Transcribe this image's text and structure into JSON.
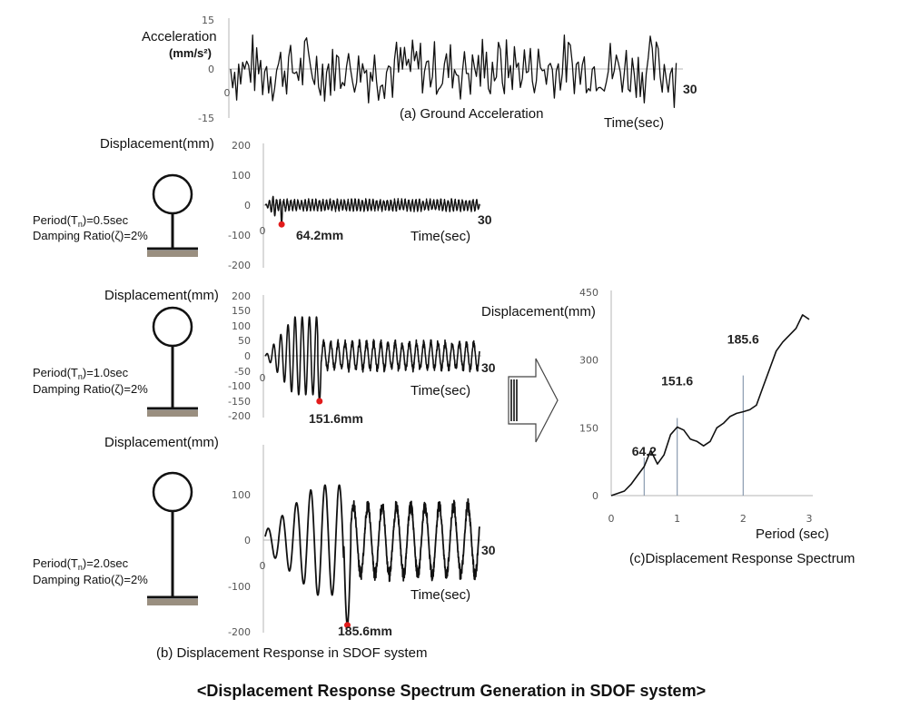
{
  "ground_accel": {
    "ylabel_line1": "Acceleration",
    "ylabel_line2": "(mm/s²)",
    "ticks": [
      "15",
      "0",
      "-15"
    ],
    "origin": "0",
    "end": "30",
    "xlabel": "Time(sec)",
    "caption": "(a) Ground Acceleration"
  },
  "sdof_panels": [
    {
      "ylabel": "Displacement(mm)",
      "period_label": "Period(T",
      "period_sub": "n",
      "period_value": ")=0.5sec",
      "damping": "Damping Ratio(ζ)=2%",
      "ticks": [
        "200",
        "100",
        "0",
        "-100",
        "-200"
      ],
      "origin": "0",
      "end": "30",
      "xlabel": "Time(sec)",
      "peak": "64.2mm",
      "peak_value": 64.2,
      "peak_time": 2.3
    },
    {
      "ylabel": "Displacement(mm)",
      "period_label": "Period(T",
      "period_sub": "n",
      "period_value": ")=1.0sec",
      "damping": "Damping Ratio(ζ)=2%",
      "ticks": [
        "200",
        "150",
        "100",
        "50",
        "0",
        "-50",
        "-100",
        "-150",
        "-200"
      ],
      "origin": "0",
      "end": "30",
      "xlabel": "Time(sec)",
      "peak": "151.6mm",
      "peak_value": 151.6,
      "peak_time": 7.6
    },
    {
      "ylabel": "Displacement(mm)",
      "period_label": "Period(T",
      "period_sub": "n",
      "period_value": ")=2.0sec",
      "damping": "Damping Ratio(ζ)=2%",
      "ticks": [
        "100",
        "0",
        "-100",
        "-200"
      ],
      "origin": "0",
      "end": "30",
      "xlabel": "Time(sec)",
      "peak": "185.6mm",
      "peak_value": 185.6,
      "peak_time": 11.5
    }
  ],
  "response_caption": "(b) Displacement Response in SDOF system",
  "chart_data": {
    "type": "line",
    "title": "(c)Displacement Response Spectrum",
    "xlabel": "Period (sec)",
    "ylabel": "Displacement(mm)",
    "xlim": [
      0,
      3
    ],
    "ylim": [
      0,
      450
    ],
    "xticks": [
      "0",
      "1",
      "2",
      "3"
    ],
    "yticks": [
      "0",
      "150",
      "300",
      "450"
    ],
    "x": [
      0,
      0.1,
      0.2,
      0.3,
      0.4,
      0.5,
      0.6,
      0.7,
      0.8,
      0.9,
      1.0,
      1.1,
      1.2,
      1.3,
      1.4,
      1.5,
      1.6,
      1.7,
      1.8,
      1.9,
      2.0,
      2.1,
      2.2,
      2.3,
      2.4,
      2.5,
      2.6,
      2.7,
      2.8,
      2.9,
      3.0
    ],
    "values": [
      0,
      5,
      10,
      25,
      45,
      64.2,
      100,
      70,
      90,
      135,
      151.6,
      145,
      125,
      120,
      110,
      120,
      150,
      160,
      175,
      182,
      185.6,
      190,
      200,
      240,
      280,
      320,
      340,
      355,
      370,
      400,
      390
    ],
    "annotations": [
      {
        "x": 0.5,
        "y": 64.2,
        "label": "64.2"
      },
      {
        "x": 1.0,
        "y": 151.6,
        "label": "151.6"
      },
      {
        "x": 2.0,
        "y": 185.6,
        "label": "185.6"
      }
    ]
  },
  "main_title": "<Displacement Response Spectrum Generation in SDOF system>"
}
